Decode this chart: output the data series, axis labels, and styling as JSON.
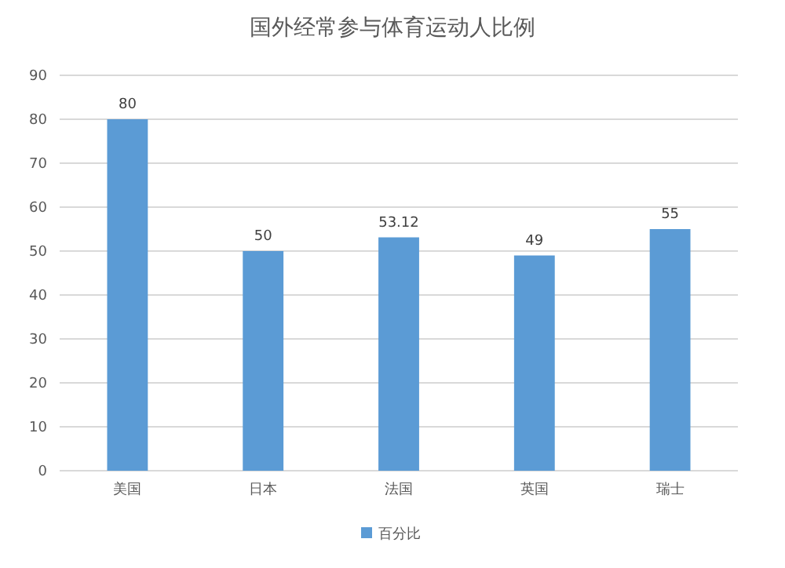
{
  "chart_data": {
    "type": "bar",
    "title": "国外经常参与体育运动人比例",
    "categories": [
      "美国",
      "日本",
      "法国",
      "英国",
      "瑞士"
    ],
    "series": [
      {
        "name": "百分比",
        "color": "#5b9bd5",
        "values": [
          80,
          50,
          53.12,
          49,
          55
        ]
      }
    ],
    "ylim": [
      0,
      90
    ],
    "yticks": [
      0,
      10,
      20,
      30,
      40,
      50,
      60,
      70,
      80,
      90
    ],
    "grid": "y",
    "legend": "bottom",
    "data_labels": true
  }
}
